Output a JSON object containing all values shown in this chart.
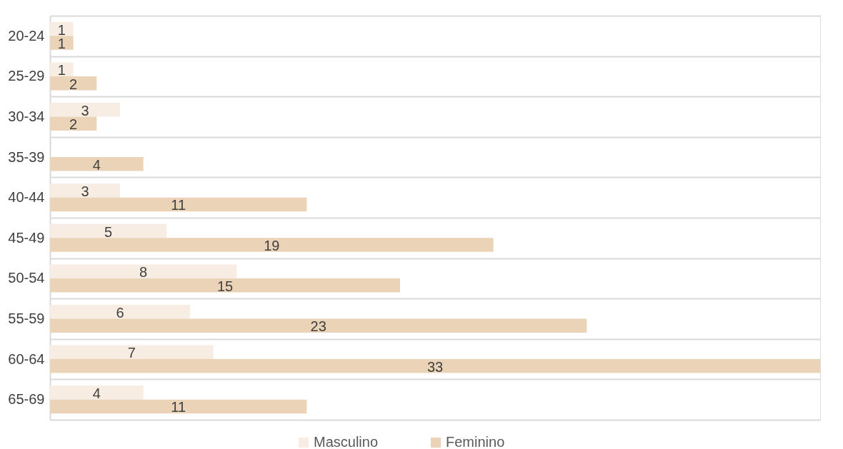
{
  "chart_data": {
    "type": "bar",
    "orientation": "horizontal",
    "categories": [
      "20-24",
      "25-29",
      "30-34",
      "35-39",
      "40-44",
      "45-49",
      "50-54",
      "55-59",
      "60-64",
      "65-69"
    ],
    "series": [
      {
        "name": "Masculino",
        "color": "#f7ede3",
        "values": [
          1,
          1,
          3,
          null,
          3,
          5,
          8,
          6,
          7,
          4
        ]
      },
      {
        "name": "Feminino",
        "color": "#ebd3b8",
        "values": [
          1,
          2,
          2,
          4,
          11,
          19,
          15,
          23,
          33,
          11
        ]
      }
    ],
    "data_labels": true,
    "grid": "y",
    "legend": "bottom",
    "tick_labels": "y"
  }
}
